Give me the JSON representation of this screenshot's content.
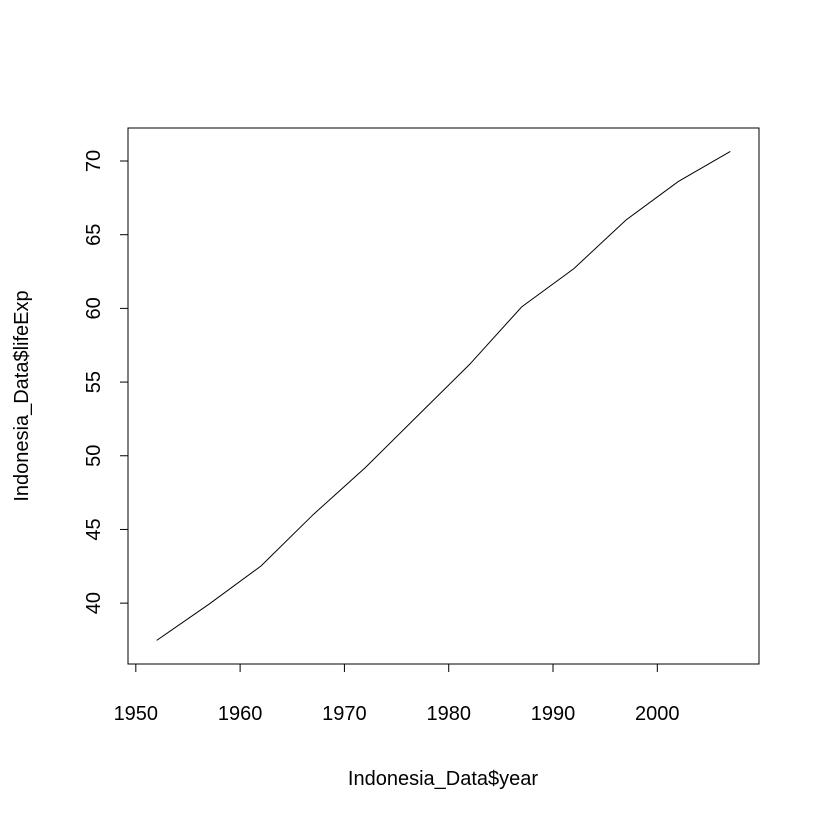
{
  "chart_data": {
    "type": "line",
    "title": "",
    "xlabel": "Indonesia_Data$year",
    "ylabel": "Indonesia_Data$lifeExp",
    "xlim": [
      1949.25,
      2009.75
    ],
    "ylim": [
      35.87,
      72.24
    ],
    "xticks": [
      1950,
      1960,
      1970,
      1980,
      1990,
      2000
    ],
    "yticks": [
      40,
      45,
      50,
      55,
      60,
      65,
      70
    ],
    "grid": false,
    "series": [
      {
        "color": "#000000",
        "x": [
          1952,
          1957,
          1962,
          1967,
          1972,
          1977,
          1982,
          1987,
          1992,
          1997,
          2002,
          2007
        ],
        "y": [
          37.47,
          39.92,
          42.52,
          46.0,
          49.2,
          52.7,
          56.2,
          60.1,
          62.7,
          66.0,
          68.6,
          70.65
        ]
      }
    ]
  }
}
